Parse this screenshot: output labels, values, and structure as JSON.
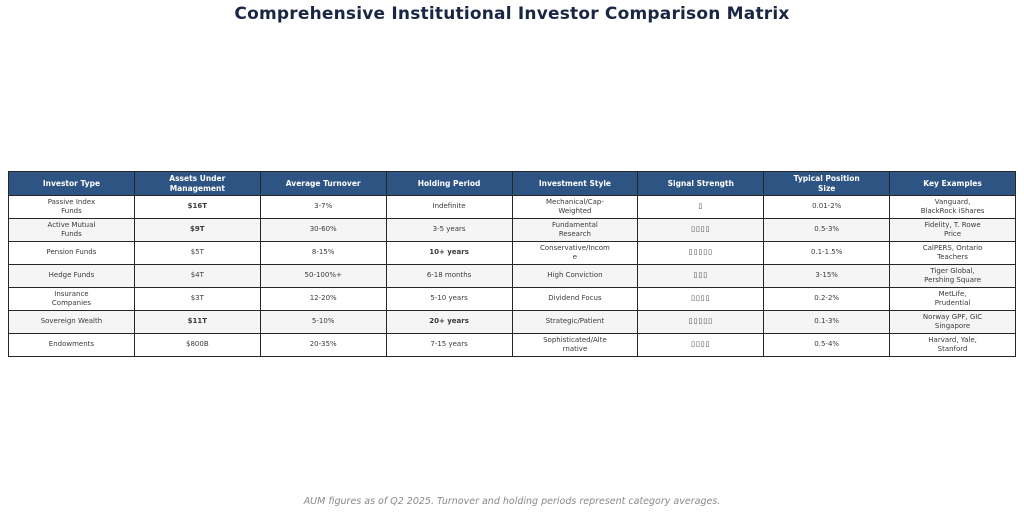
{
  "title": "Comprehensive Institutional Investor Comparison Matrix",
  "footnote": "AUM figures as of Q2 2025. Turnover and holding periods represent category averages.",
  "colors": {
    "title_text": "#1a2744",
    "header_bg": "#2e5484",
    "header_text": "#ffffff",
    "cell_text": "#3a3a3a",
    "aum_highlight_green": "#1d6f50",
    "holding_highlight_blue": "#1f5fd0",
    "row_alt_bg": "#f5f5f5",
    "border": "#262626",
    "footnote_text": "#8a8a8a"
  },
  "chart_data": {
    "type": "table",
    "title": "Comprehensive Institutional Investor Comparison Matrix",
    "footnote": "AUM figures as of Q2 2025. Turnover and holding periods represent category averages.",
    "legend_position": "none",
    "grid": "all-cell-borders",
    "columns": [
      "Investor Type",
      "Assets Under\nManagement",
      "Average Turnover",
      "Holding Period",
      "Investment Style",
      "Signal Strength",
      "Typical Position\nSize",
      "Key Examples"
    ],
    "rows": [
      {
        "investor_type": "Passive Index\nFunds",
        "aum": "$16T",
        "turnover": "3-7%",
        "holding_period": "Indefinite",
        "style": "Mechanical/Cap-\nWeighted",
        "signal_strength": "▯",
        "position_size": "0.01-2%",
        "examples": "Vanguard,\nBlackRock iShares"
      },
      {
        "investor_type": "Active Mutual\nFunds",
        "aum": "$9T",
        "turnover": "30-60%",
        "holding_period": "3-5 years",
        "style": "Fundamental\nResearch",
        "signal_strength": "▯▯▯▯",
        "position_size": "0.5-3%",
        "examples": "Fidelity, T. Rowe\nPrice"
      },
      {
        "investor_type": "Pension Funds",
        "aum": "$5T",
        "turnover": "8-15%",
        "holding_period": "10+ years",
        "style": "Conservative/Incom\ne",
        "signal_strength": "▯▯▯▯▯",
        "position_size": "0.1-1.5%",
        "examples": "CalPERS, Ontario\nTeachers"
      },
      {
        "investor_type": "Hedge Funds",
        "aum": "$4T",
        "turnover": "50-100%+",
        "holding_period": "6-18 months",
        "style": "High Conviction",
        "signal_strength": "▯▯▯",
        "position_size": "3-15%",
        "examples": "Tiger Global,\nPershing Square"
      },
      {
        "investor_type": "Insurance\nCompanies",
        "aum": "$3T",
        "turnover": "12-20%",
        "holding_period": "5-10 years",
        "style": "Dividend Focus",
        "signal_strength": "▯▯▯▯",
        "position_size": "0.2-2%",
        "examples": "MetLife,\nPrudential"
      },
      {
        "investor_type": "Sovereign Wealth",
        "aum": "$11T",
        "turnover": "5-10%",
        "holding_period": "20+ years",
        "style": "Strategic/Patient",
        "signal_strength": "▯▯▯▯▯",
        "position_size": "0.1-3%",
        "examples": "Norway GPF, GIC\nSingapore"
      },
      {
        "investor_type": "Endowments",
        "aum": "$800B",
        "turnover": "20-35%",
        "holding_period": "7-15 years",
        "style": "Sophisticated/Alte\nrnative",
        "signal_strength": "▯▯▯▯",
        "position_size": "0.5-4%",
        "examples": "Harvard, Yale,\nStanford"
      }
    ]
  }
}
